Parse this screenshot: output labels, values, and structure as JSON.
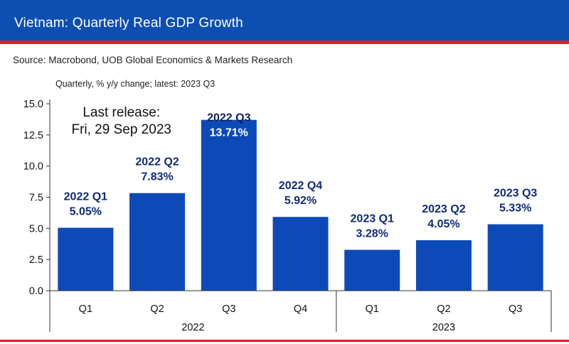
{
  "header": {
    "title": "Vietnam: Quarterly Real GDP Growth"
  },
  "source": "Source: Macrobond, UOB Global Economics & Markets Research",
  "colors": {
    "header_bg": "#0d4fb0",
    "accent_red": "#e8192c",
    "bar": "#0c4ab7",
    "label": "#10297a"
  },
  "chart_data": {
    "type": "bar",
    "subtitle": "Quarterly, % y/y change; latest: 2023 Q3",
    "annotation": [
      "Last release:",
      "Fri, 29 Sep 2023"
    ],
    "categories": [
      "Q1",
      "Q2",
      "Q3",
      "Q4",
      "Q1",
      "Q2",
      "Q3"
    ],
    "groups": [
      {
        "label": "2022",
        "count": 4
      },
      {
        "label": "2023",
        "count": 3
      }
    ],
    "values": [
      5.05,
      7.83,
      13.71,
      5.92,
      3.28,
      4.05,
      5.33
    ],
    "data_labels": [
      [
        "2022 Q1",
        "5.05%"
      ],
      [
        "2022 Q2",
        "7.83%"
      ],
      [
        "2022 Q3",
        "13.71%"
      ],
      [
        "2022 Q4",
        "5.92%"
      ],
      [
        "2023 Q1",
        "3.28%"
      ],
      [
        "2023 Q2",
        "4.05%"
      ],
      [
        "2023 Q3",
        "5.33%"
      ]
    ],
    "yticks": [
      "0.0",
      "2.5",
      "5.0",
      "7.5",
      "10.0",
      "12.5",
      "15.0"
    ],
    "ylim": [
      0,
      15
    ],
    "grid": false,
    "legend": "none"
  }
}
